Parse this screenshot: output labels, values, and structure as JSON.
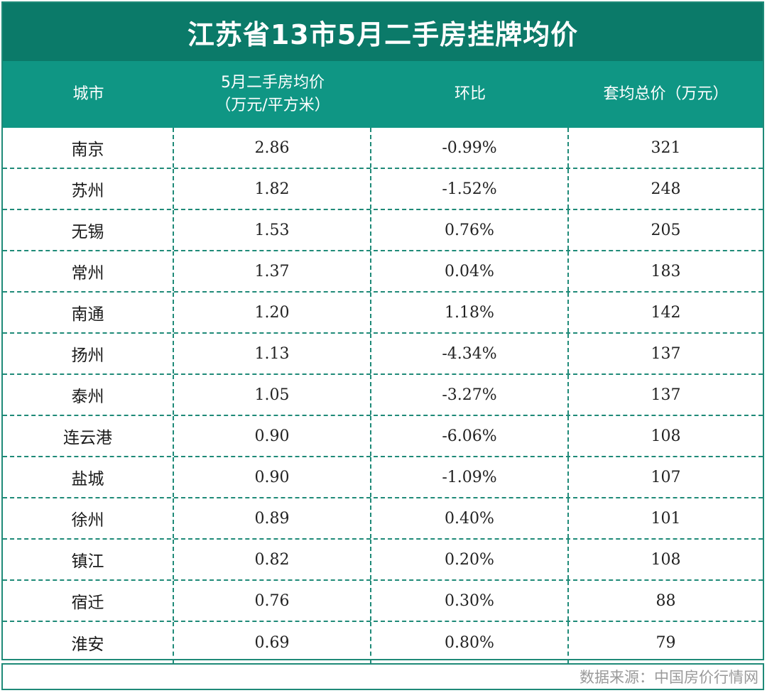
{
  "title": "江苏省13市5月二手房挂牌均价",
  "headers": {
    "city": "城市",
    "avg_price_line1": "5月二手房均价",
    "avg_price_line2": "（万元/平方米）",
    "mom": "环比",
    "total_price": "套均总价（万元）"
  },
  "rows": [
    {
      "city": "南京",
      "avg_price": "2.86",
      "mom": "-0.99%",
      "total": "321"
    },
    {
      "city": "苏州",
      "avg_price": "1.82",
      "mom": "-1.52%",
      "total": "248"
    },
    {
      "city": "无锡",
      "avg_price": "1.53",
      "mom": "0.76%",
      "total": "205"
    },
    {
      "city": "常州",
      "avg_price": "1.37",
      "mom": "0.04%",
      "total": "183"
    },
    {
      "city": "南通",
      "avg_price": "1.20",
      "mom": "1.18%",
      "total": "142"
    },
    {
      "city": "扬州",
      "avg_price": "1.13",
      "mom": "-4.34%",
      "total": "137"
    },
    {
      "city": "泰州",
      "avg_price": "1.05",
      "mom": "-3.27%",
      "total": "137"
    },
    {
      "city": "连云港",
      "avg_price": "0.90",
      "mom": "-6.06%",
      "total": "108"
    },
    {
      "city": "盐城",
      "avg_price": "0.90",
      "mom": "-1.09%",
      "total": "107"
    },
    {
      "city": "徐州",
      "avg_price": "0.89",
      "mom": "0.40%",
      "total": "101"
    },
    {
      "city": "镇江",
      "avg_price": "0.82",
      "mom": "0.20%",
      "total": "108"
    },
    {
      "city": "宿迁",
      "avg_price": "0.76",
      "mom": "0.30%",
      "total": "88"
    },
    {
      "city": "淮安",
      "avg_price": "0.69",
      "mom": "0.80%",
      "total": "79"
    }
  ],
  "footer": {
    "source": "数据来源：中国房价行情网"
  },
  "colors": {
    "title_bg": "#0b7a69",
    "header_bg": "#0f9684",
    "border": "#1f8a78",
    "source_text": "#9a9a9a"
  }
}
